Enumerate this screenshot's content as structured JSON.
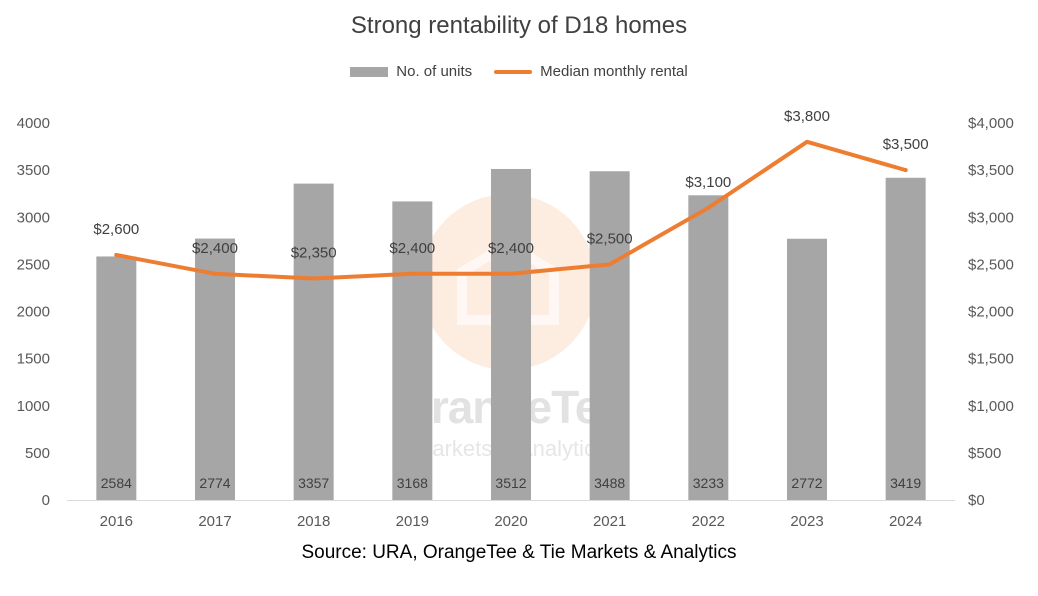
{
  "chart_data": {
    "type": "bar",
    "title": "Strong rentability of D18 homes",
    "categories": [
      "2016",
      "2017",
      "2018",
      "2019",
      "2020",
      "2021",
      "2022",
      "2023",
      "2024"
    ],
    "series": [
      {
        "name": "No. of units",
        "type": "bar",
        "axis": "left",
        "values": [
          2584,
          2774,
          3357,
          3168,
          3512,
          3488,
          3233,
          2772,
          3419
        ],
        "labels": [
          "2584",
          "2774",
          "3357",
          "3168",
          "3512",
          "3488",
          "3233",
          "2772",
          "3419"
        ],
        "color": "#a6a6a6"
      },
      {
        "name": "Median monthly rental",
        "type": "line",
        "axis": "right",
        "values": [
          2600,
          2400,
          2350,
          2400,
          2400,
          2500,
          3100,
          3800,
          3500
        ],
        "labels": [
          "$2,600",
          "$2,400",
          "$2,350",
          "$2,400",
          "$2,400",
          "$2,500",
          "$3,100",
          "$3,800",
          "$3,500"
        ],
        "color": "#ed7d31"
      }
    ],
    "y_left": {
      "ylim": [
        0,
        4000
      ],
      "ticks": [
        "0",
        "500",
        "1000",
        "1500",
        "2000",
        "2500",
        "3000",
        "3500",
        "4000"
      ]
    },
    "y_right": {
      "ylim": [
        0,
        4000
      ],
      "ticks": [
        "$0",
        "$500",
        "$1,000",
        "$1,500",
        "$2,000",
        "$2,500",
        "$3,000",
        "$3,500",
        "$4,000"
      ]
    },
    "grid": false,
    "legend_position": "top"
  },
  "watermark": {
    "brand": "OrangeTee",
    "sub": "Markets & Analytics",
    "color": "#f8c9a6"
  },
  "source": "Source: URA, OrangeTee & Tie Markets & Analytics"
}
